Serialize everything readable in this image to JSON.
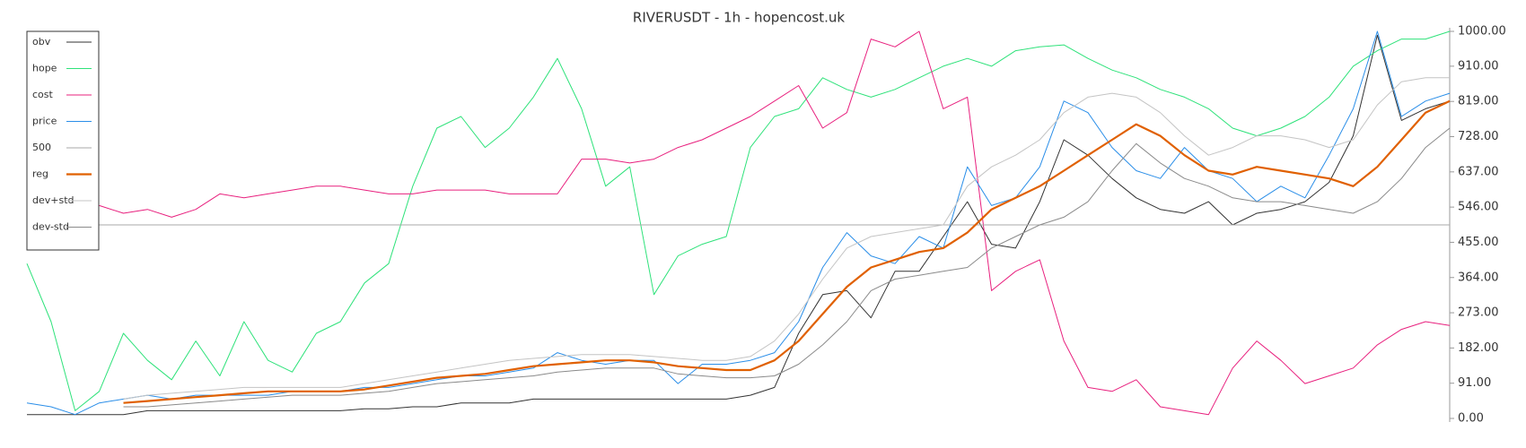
{
  "chart_data": {
    "type": "line",
    "title": "RIVERUSDT - 1h - hopencost.uk",
    "ylim": [
      0,
      1000
    ],
    "yticks": [
      {
        "value": 0,
        "label": "0.00"
      },
      {
        "value": 91,
        "label": "91.00"
      },
      {
        "value": 182,
        "label": "182.00"
      },
      {
        "value": 273,
        "label": "273.00"
      },
      {
        "value": 364,
        "label": "364.00"
      },
      {
        "value": 455,
        "label": "455.00"
      },
      {
        "value": 546,
        "label": "546.00"
      },
      {
        "value": 637,
        "label": "637.00"
      },
      {
        "value": 728,
        "label": "728.00"
      },
      {
        "value": 819,
        "label": "819.00"
      },
      {
        "value": 910,
        "label": "910.00"
      },
      {
        "value": 1000,
        "label": "1000.00"
      }
    ],
    "legend": "upper left",
    "series": [
      {
        "name": "obv",
        "color": "#333333",
        "line_width": 1,
        "values": [
          10,
          10,
          10,
          10,
          10,
          20,
          20,
          20,
          20,
          20,
          20,
          20,
          20,
          20,
          25,
          25,
          30,
          30,
          40,
          40,
          40,
          50,
          50,
          50,
          50,
          50,
          50,
          50,
          50,
          50,
          60,
          80,
          220,
          320,
          330,
          260,
          380,
          380,
          470,
          560,
          450,
          440,
          560,
          720,
          680,
          620,
          570,
          540,
          530,
          560,
          500,
          530,
          540,
          560,
          610,
          730,
          990,
          770,
          800,
          820
        ]
      },
      {
        "name": "hope",
        "color": "#2ee27a",
        "line_width": 1,
        "values": [
          400,
          250,
          20,
          70,
          220,
          150,
          100,
          200,
          110,
          250,
          150,
          120,
          220,
          250,
          350,
          400,
          600,
          750,
          780,
          700,
          750,
          830,
          930,
          800,
          600,
          650,
          320,
          420,
          450,
          470,
          700,
          780,
          800,
          880,
          850,
          830,
          850,
          880,
          910,
          930,
          910,
          950,
          960,
          965,
          930,
          900,
          880,
          850,
          830,
          800,
          750,
          730,
          750,
          780,
          830,
          910,
          950,
          980,
          980,
          1000
        ]
      },
      {
        "name": "cost",
        "color": "#e8207e",
        "line_width": 1,
        "values": [
          null,
          null,
          null,
          550,
          530,
          540,
          520,
          540,
          580,
          570,
          580,
          590,
          600,
          600,
          590,
          580,
          580,
          590,
          590,
          590,
          580,
          580,
          580,
          670,
          670,
          660,
          670,
          700,
          720,
          750,
          780,
          820,
          860,
          750,
          790,
          980,
          960,
          1000,
          800,
          830,
          330,
          380,
          410,
          200,
          80,
          70,
          100,
          30,
          20,
          10,
          130,
          200,
          150,
          90,
          110,
          130,
          190,
          230,
          250,
          240
        ]
      },
      {
        "name": "price",
        "color": "#2a8ee8",
        "line_width": 1,
        "values": [
          40,
          30,
          10,
          40,
          50,
          60,
          50,
          60,
          60,
          60,
          60,
          70,
          70,
          70,
          80,
          80,
          90,
          100,
          110,
          110,
          120,
          130,
          170,
          150,
          140,
          150,
          150,
          90,
          140,
          140,
          150,
          170,
          250,
          390,
          480,
          420,
          400,
          470,
          440,
          650,
          550,
          570,
          650,
          820,
          790,
          700,
          640,
          620,
          700,
          640,
          620,
          560,
          600,
          570,
          680,
          800,
          1000,
          780,
          820,
          840
        ]
      },
      {
        "name": "500",
        "color": "#aaaaaa",
        "line_width": 1,
        "values": [
          500,
          500,
          500,
          500,
          500,
          500,
          500,
          500,
          500,
          500,
          500,
          500,
          500,
          500,
          500,
          500,
          500,
          500,
          500,
          500,
          500,
          500,
          500,
          500,
          500,
          500,
          500,
          500,
          500,
          500,
          500,
          500,
          500,
          500,
          500,
          500,
          500,
          500,
          500,
          500,
          500,
          500,
          500,
          500,
          500,
          500,
          500,
          500,
          500,
          500,
          500,
          500,
          500,
          500,
          500,
          500,
          500,
          500,
          500,
          500
        ]
      },
      {
        "name": "reg",
        "color": "#e06000",
        "line_width": 2.2,
        "values": [
          null,
          null,
          null,
          null,
          40,
          45,
          50,
          55,
          60,
          65,
          70,
          70,
          70,
          70,
          75,
          85,
          95,
          105,
          110,
          115,
          125,
          135,
          140,
          145,
          150,
          150,
          145,
          135,
          130,
          125,
          125,
          150,
          200,
          270,
          340,
          390,
          410,
          430,
          440,
          480,
          540,
          570,
          600,
          640,
          680,
          720,
          760,
          730,
          680,
          640,
          630,
          650,
          640,
          630,
          620,
          600,
          650,
          720,
          790,
          820
        ]
      },
      {
        "name": "dev+std",
        "color": "#c4c4c4",
        "line_width": 1,
        "values": [
          null,
          null,
          null,
          null,
          50,
          60,
          65,
          70,
          75,
          80,
          80,
          80,
          80,
          80,
          90,
          100,
          110,
          120,
          130,
          140,
          150,
          155,
          160,
          165,
          165,
          165,
          160,
          155,
          150,
          150,
          160,
          200,
          270,
          360,
          440,
          470,
          480,
          490,
          500,
          600,
          650,
          680,
          720,
          790,
          830,
          840,
          830,
          790,
          730,
          680,
          700,
          730,
          730,
          720,
          700,
          720,
          810,
          870,
          880,
          880
        ]
      },
      {
        "name": "dev-std",
        "color": "#8a8a8a",
        "line_width": 1,
        "values": [
          null,
          null,
          null,
          null,
          30,
          30,
          35,
          40,
          45,
          50,
          55,
          60,
          60,
          60,
          65,
          70,
          80,
          90,
          95,
          100,
          105,
          110,
          120,
          125,
          130,
          130,
          130,
          115,
          110,
          105,
          105,
          110,
          140,
          190,
          250,
          330,
          360,
          370,
          380,
          390,
          440,
          470,
          500,
          520,
          560,
          640,
          710,
          660,
          620,
          600,
          570,
          560,
          560,
          550,
          540,
          530,
          560,
          620,
          700,
          750
        ]
      }
    ]
  }
}
